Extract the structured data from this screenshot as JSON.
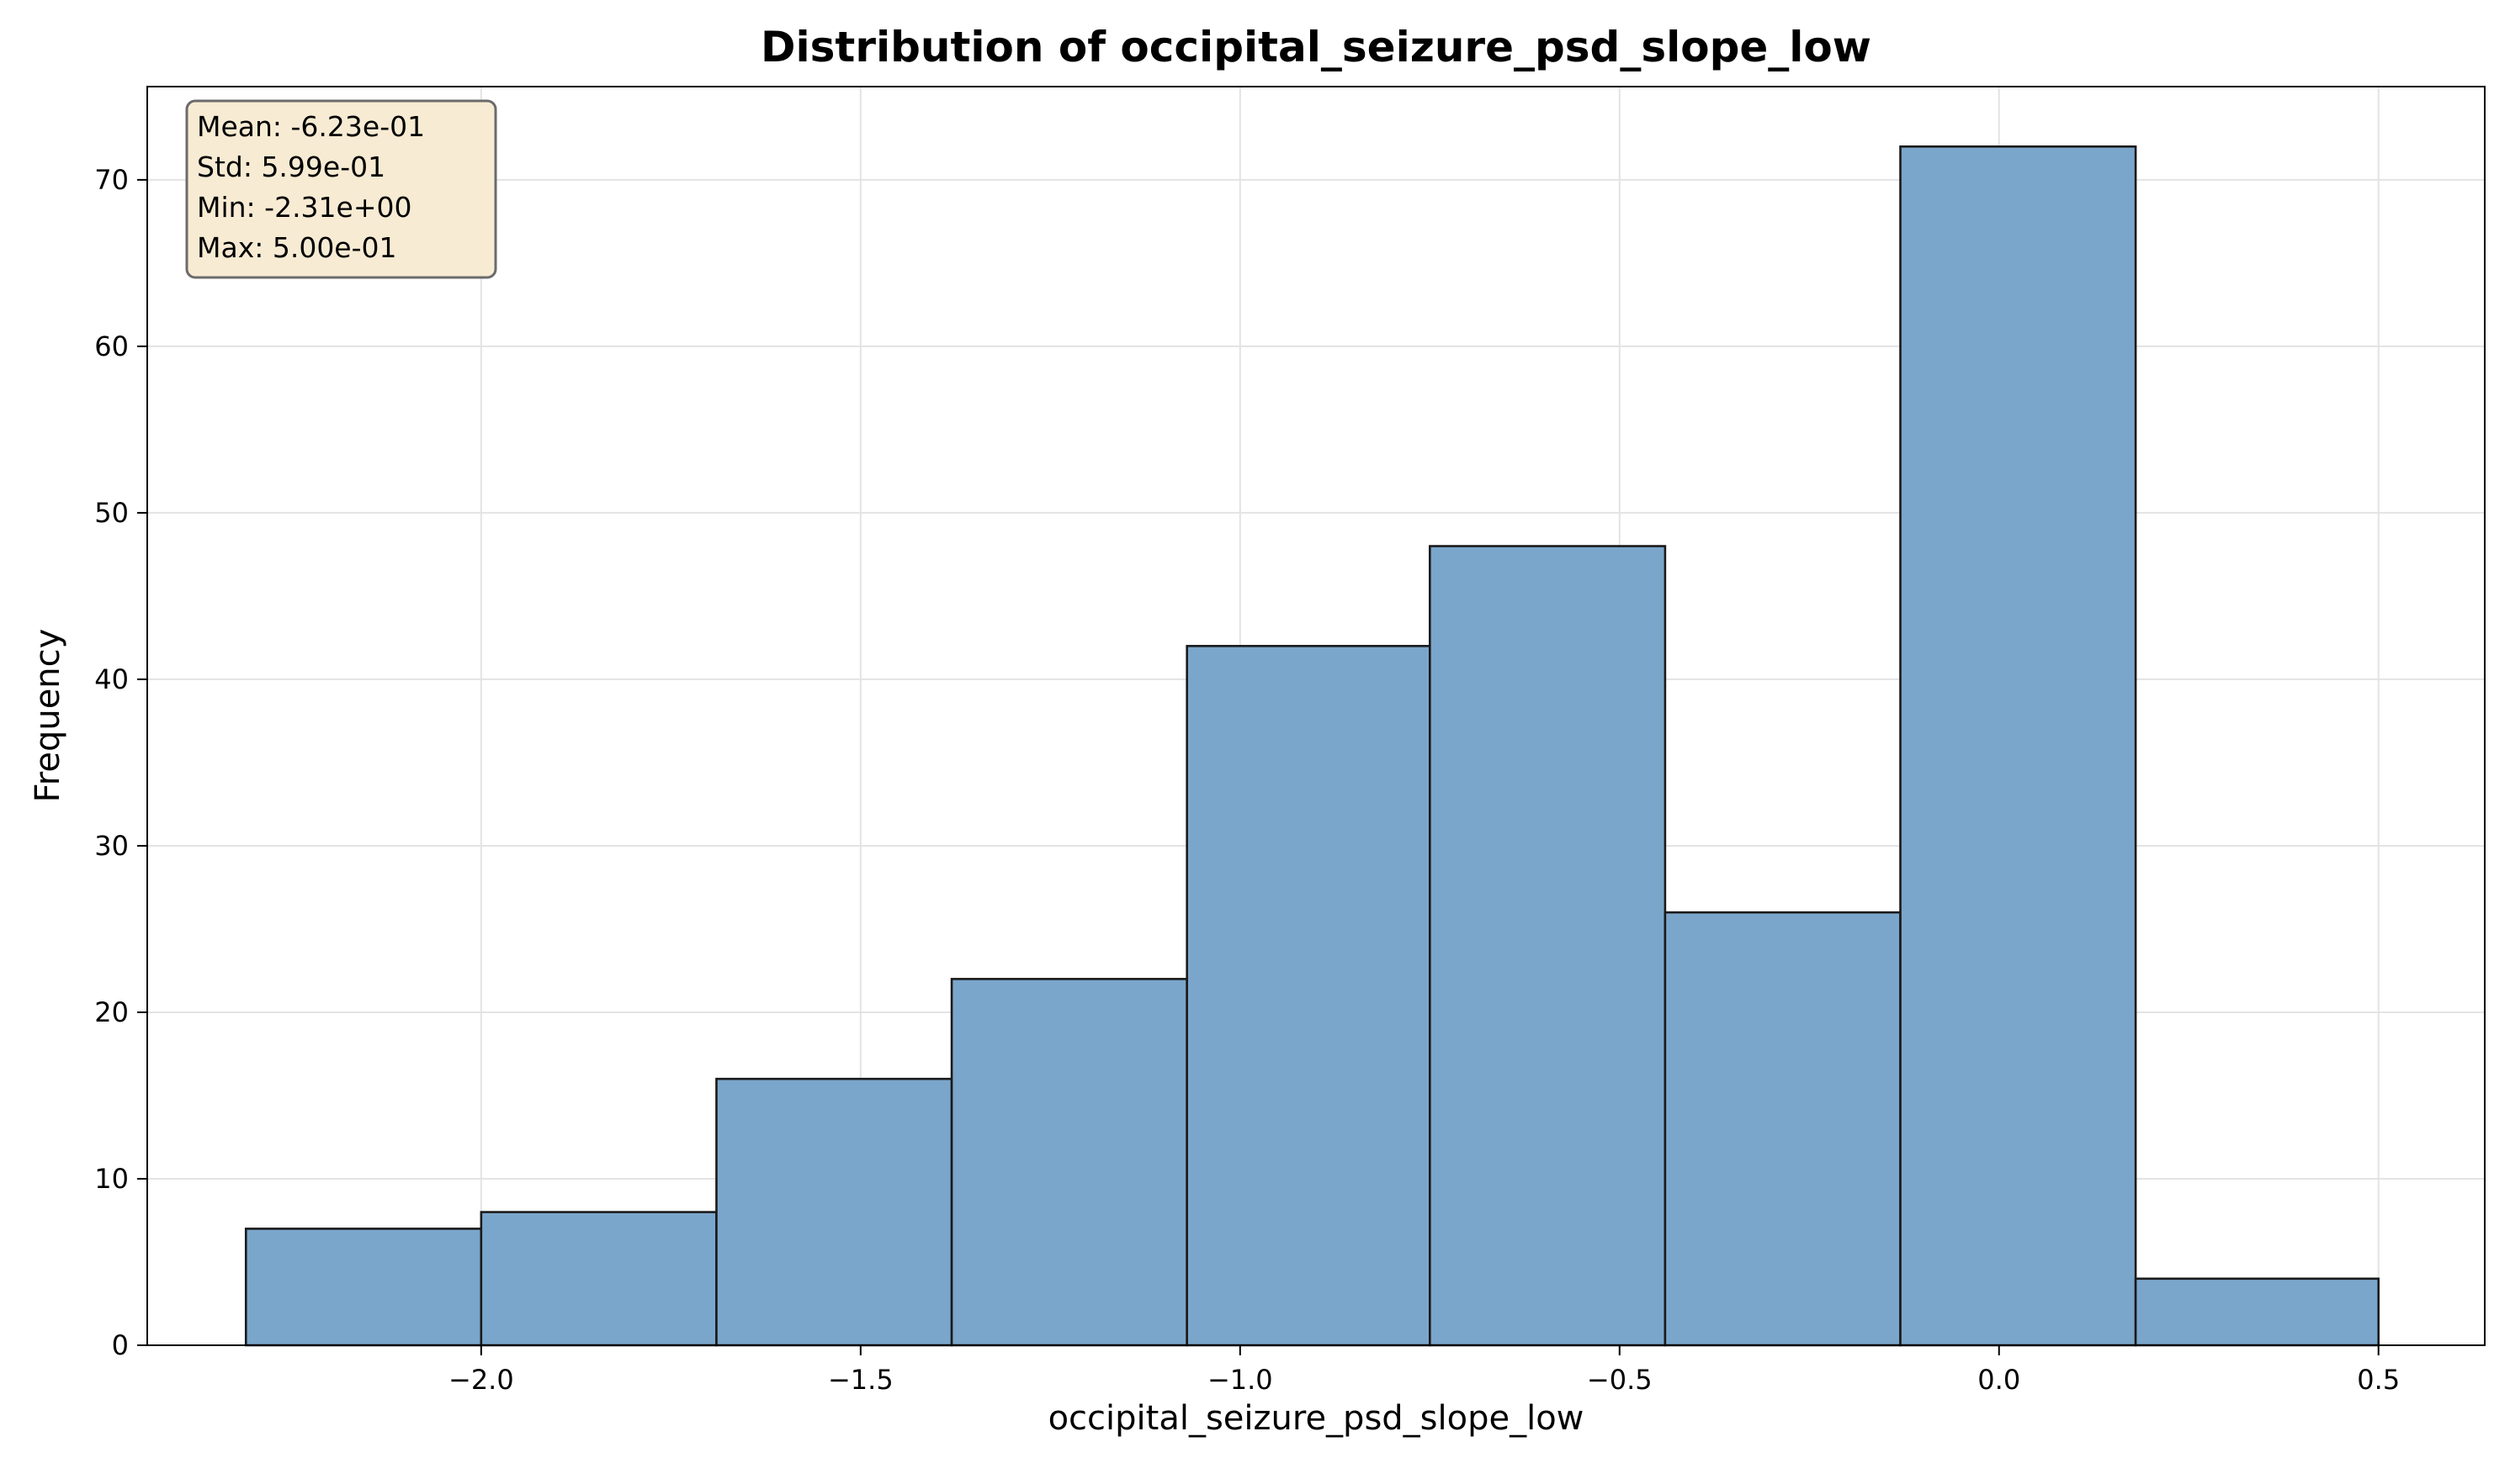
{
  "chart_data": {
    "type": "bar",
    "title": "Distribution of occipital_seizure_psd_slope_low",
    "xlabel": "occipital_seizure_psd_slope_low",
    "ylabel": "Frequency",
    "xlim": [
      -2.44,
      0.64
    ],
    "ylim": [
      0,
      75.6
    ],
    "bin_edges": [
      -2.31,
      -2.0,
      -1.69,
      -1.38,
      -1.07,
      -0.75,
      -0.44,
      -0.13,
      0.18,
      0.5
    ],
    "values": [
      7,
      8,
      16,
      22,
      42,
      48,
      26,
      72,
      4
    ],
    "x_ticks": [
      {
        "value": -2.0,
        "label": "−2.0"
      },
      {
        "value": -1.5,
        "label": "−1.5"
      },
      {
        "value": -1.0,
        "label": "−1.0"
      },
      {
        "value": -0.5,
        "label": "−0.5"
      },
      {
        "value": 0.0,
        "label": "0.0"
      },
      {
        "value": 0.5,
        "label": "0.5"
      }
    ],
    "y_ticks": [
      {
        "value": 0,
        "label": "0"
      },
      {
        "value": 10,
        "label": "10"
      },
      {
        "value": 20,
        "label": "20"
      },
      {
        "value": 30,
        "label": "30"
      },
      {
        "value": 40,
        "label": "40"
      },
      {
        "value": 50,
        "label": "50"
      },
      {
        "value": 60,
        "label": "60"
      },
      {
        "value": 70,
        "label": "70"
      }
    ],
    "grid": true,
    "bar_color": "#7ba6cb",
    "edge_color": "#1a1a1a",
    "stats_box": {
      "placement": "top-left",
      "lines": [
        "Mean: -6.23e-01",
        "Std: 5.99e-01",
        "Min: -2.31e+00",
        "Max: 5.00e-01"
      ]
    }
  }
}
